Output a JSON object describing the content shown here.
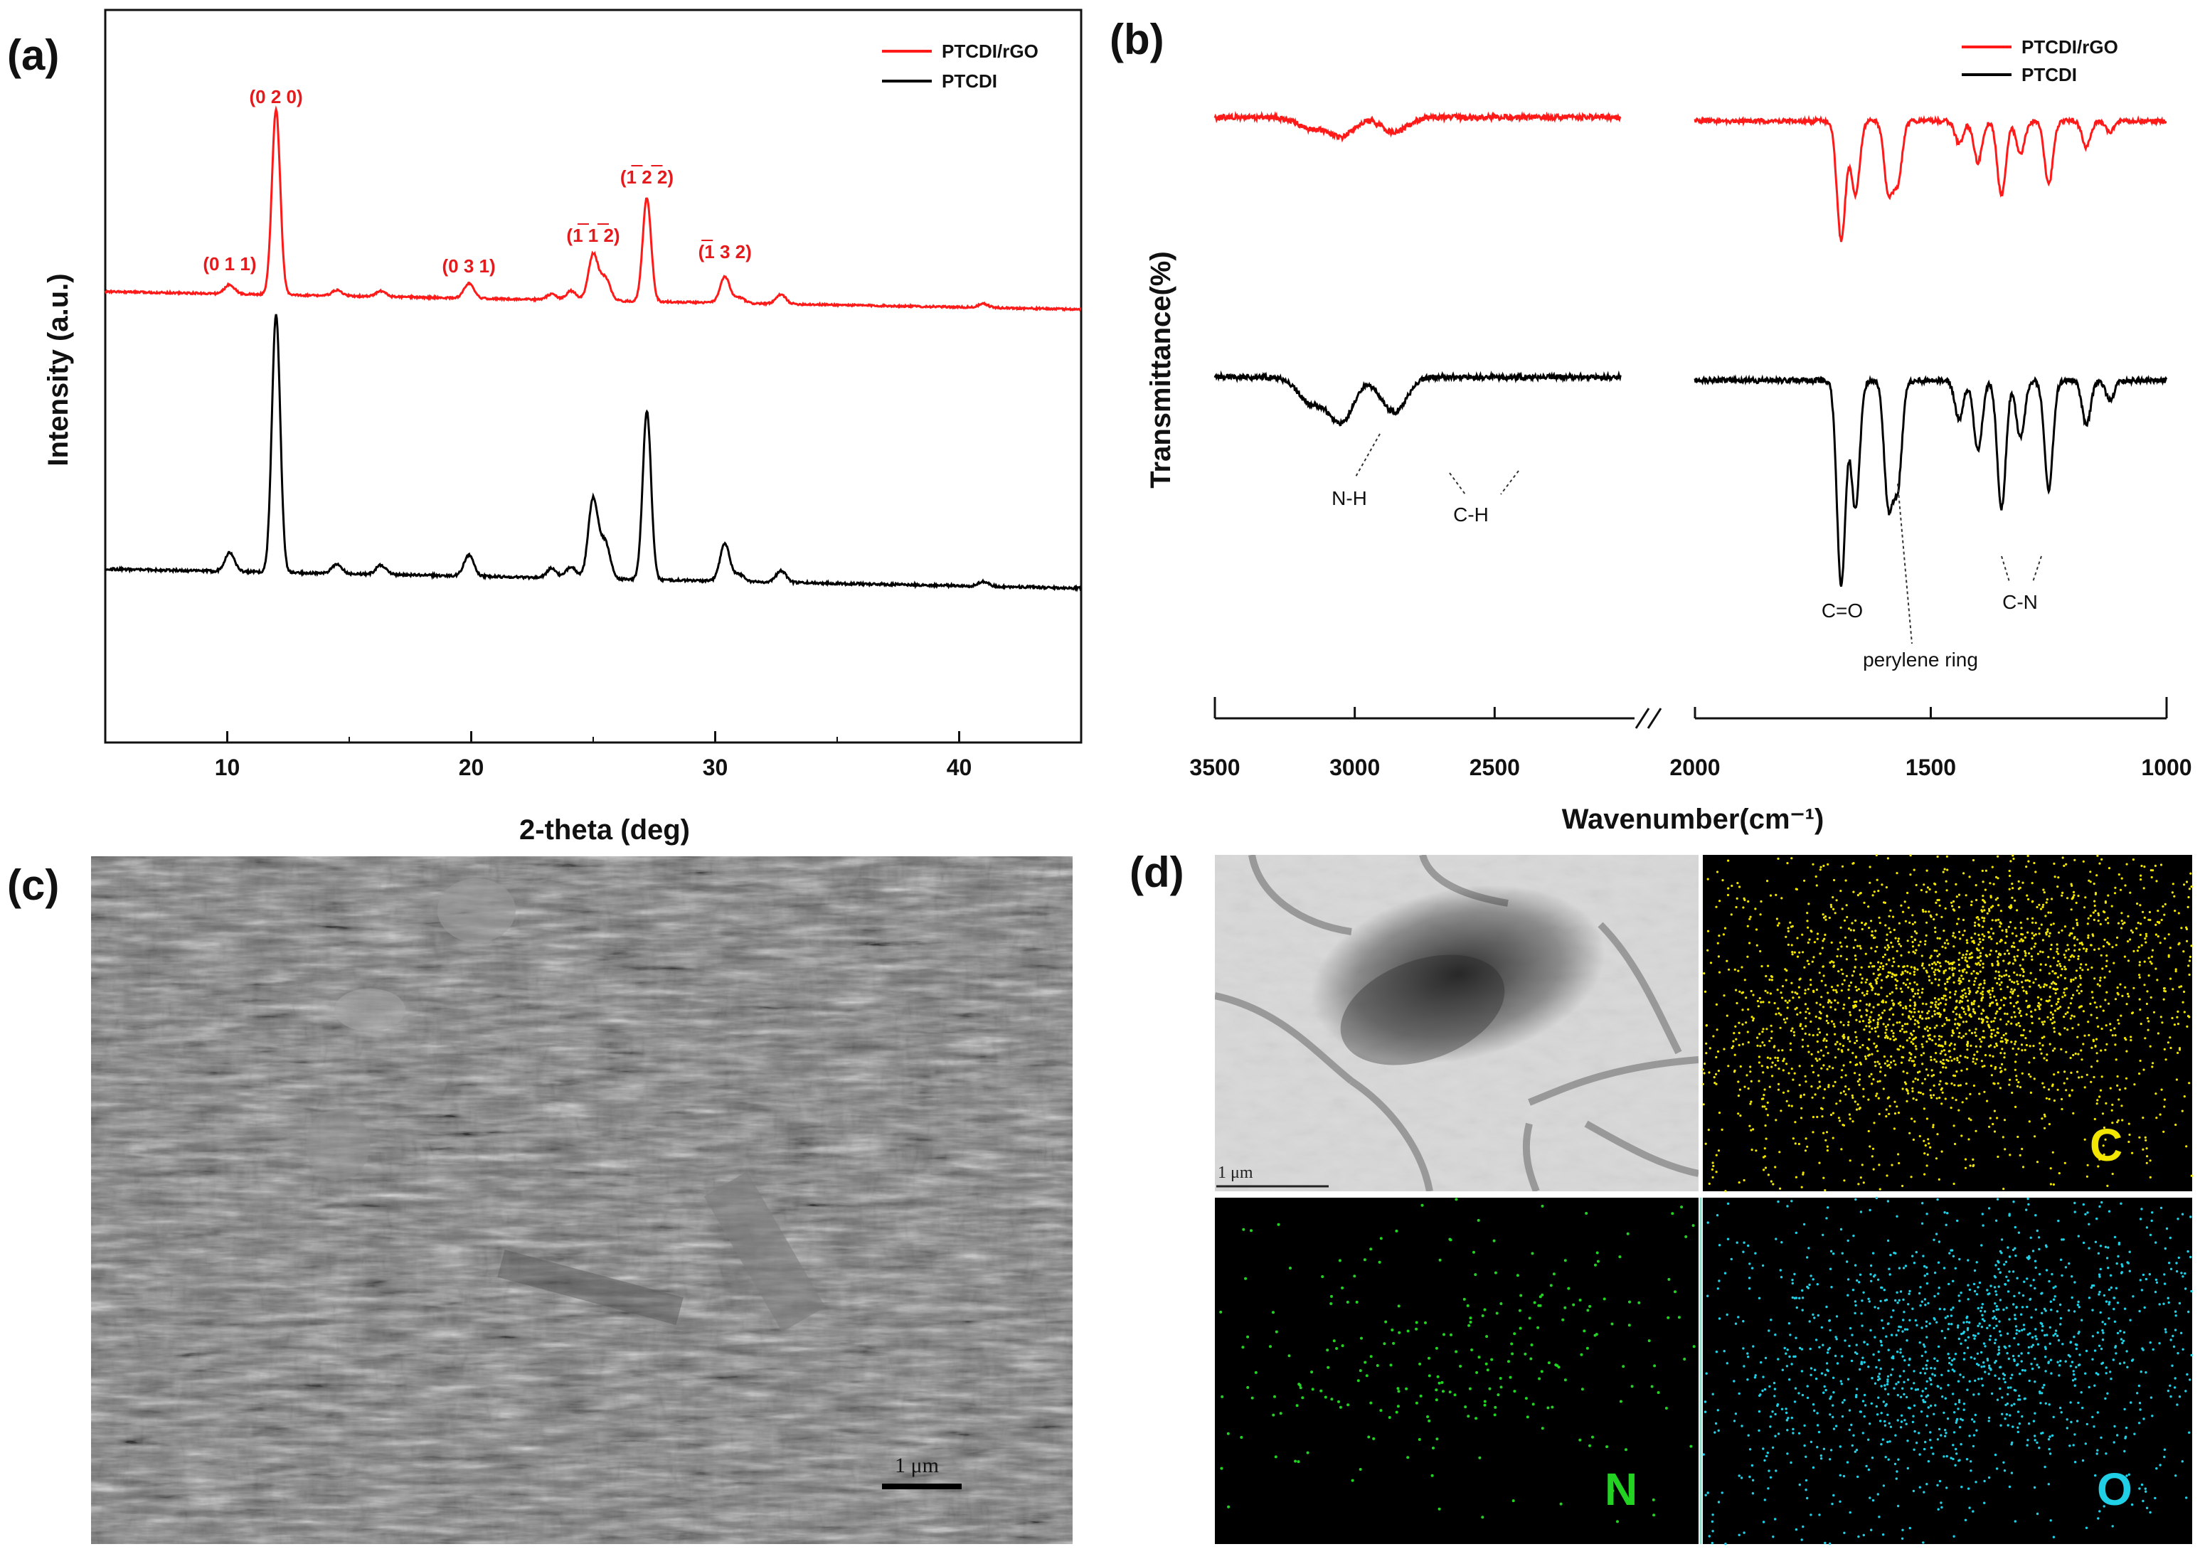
{
  "panels": {
    "a": "(a)",
    "b": "(b)",
    "c": "(c)",
    "d": "(d)"
  },
  "chart_data": [
    {
      "id": "a",
      "type": "line",
      "xlabel": "2-theta (deg)",
      "ylabel": "Intensity (a.u.)",
      "xlim": [
        5,
        45
      ],
      "xticks": [
        10,
        20,
        30,
        40
      ],
      "legend_position": "top-right",
      "series": [
        {
          "name": "PTCDI/rGO",
          "color": "#ff1a1a",
          "peaks": [
            {
              "x": 10.1,
              "h": 0.05
            },
            {
              "x": 12.0,
              "h": 1.0
            },
            {
              "x": 14.5,
              "h": 0.03
            },
            {
              "x": 16.3,
              "h": 0.03
            },
            {
              "x": 19.9,
              "h": 0.08
            },
            {
              "x": 23.3,
              "h": 0.03
            },
            {
              "x": 24.1,
              "h": 0.05
            },
            {
              "x": 25.0,
              "h": 0.25
            },
            {
              "x": 25.5,
              "h": 0.12
            },
            {
              "x": 27.2,
              "h": 0.56
            },
            {
              "x": 30.4,
              "h": 0.14
            },
            {
              "x": 31.0,
              "h": 0.03
            },
            {
              "x": 32.7,
              "h": 0.05
            },
            {
              "x": 41.0,
              "h": 0.02
            }
          ]
        },
        {
          "name": "PTCDI",
          "color": "#000000",
          "peaks": [
            {
              "x": 10.1,
              "h": 0.08
            },
            {
              "x": 12.0,
              "h": 1.1
            },
            {
              "x": 14.5,
              "h": 0.04
            },
            {
              "x": 16.3,
              "h": 0.04
            },
            {
              "x": 19.9,
              "h": 0.09
            },
            {
              "x": 23.3,
              "h": 0.04
            },
            {
              "x": 24.1,
              "h": 0.05
            },
            {
              "x": 25.0,
              "h": 0.34
            },
            {
              "x": 25.5,
              "h": 0.15
            },
            {
              "x": 27.2,
              "h": 0.72
            },
            {
              "x": 30.4,
              "h": 0.16
            },
            {
              "x": 31.0,
              "h": 0.03
            },
            {
              "x": 32.7,
              "h": 0.05
            },
            {
              "x": 41.0,
              "h": 0.02
            }
          ]
        }
      ],
      "annotations": [
        {
          "x": 10.1,
          "label": "(0 1 1)"
        },
        {
          "x": 12.0,
          "label": "(0 2 0)"
        },
        {
          "x": 19.9,
          "label": "(0 3 1)"
        },
        {
          "x": 25.0,
          "label": "(1 1 2)"
        },
        {
          "x": 27.2,
          "label": "(1 2 2)"
        },
        {
          "x": 30.4,
          "label": "(1 3 2)"
        }
      ]
    },
    {
      "id": "b",
      "type": "line",
      "xlabel": "Wavenumber(cm⁻¹)",
      "ylabel": "Transmittance(%)",
      "axis_break": [
        2000,
        2100
      ],
      "xticks": [
        3500,
        3000,
        2500,
        2000,
        1500,
        1000
      ],
      "legend_position": "top-right",
      "series": [
        {
          "name": "PTCDI/rGO",
          "color": "#ff1a1a"
        },
        {
          "name": "PTCDI",
          "color": "#000000"
        }
      ],
      "bands": [
        {
          "x": 3160,
          "d": 0.25
        },
        {
          "x": 3050,
          "d": 0.45
        },
        {
          "x": 2860,
          "d": 0.35
        },
        {
          "x": 1690,
          "d": 1.6
        },
        {
          "x": 1660,
          "d": 1.0
        },
        {
          "x": 1590,
          "d": 0.95
        },
        {
          "x": 1570,
          "d": 0.8
        },
        {
          "x": 1440,
          "d": 0.3
        },
        {
          "x": 1400,
          "d": 0.55
        },
        {
          "x": 1350,
          "d": 1.0
        },
        {
          "x": 1310,
          "d": 0.45
        },
        {
          "x": 1250,
          "d": 0.85
        },
        {
          "x": 1170,
          "d": 0.35
        },
        {
          "x": 1120,
          "d": 0.15
        }
      ],
      "annotations": [
        {
          "label": "N-H"
        },
        {
          "label": "C-H"
        },
        {
          "label": "C=O"
        },
        {
          "label": "perylene ring"
        },
        {
          "label": "C-N"
        }
      ]
    }
  ],
  "sem": {
    "scale_label": "1 μm"
  },
  "eds": {
    "tem_scale_label": "1 μm",
    "maps": [
      {
        "element": "C",
        "color": "#f2e600"
      },
      {
        "element": "N",
        "color": "#22d322"
      },
      {
        "element": "O",
        "color": "#1fd0e6"
      }
    ]
  }
}
